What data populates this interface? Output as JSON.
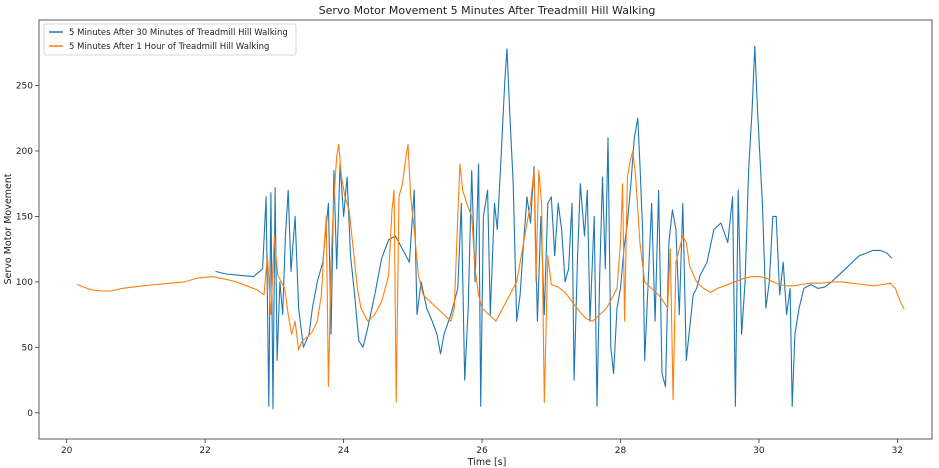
{
  "chart_data": {
    "type": "line",
    "title": "Servo Motor Movement 5 Minutes After Treadmill Hill Walking",
    "xlabel": "Time [s]",
    "ylabel": "Servo Motor Movement",
    "xlim": [
      19.6,
      32.5
    ],
    "ylim": [
      -20,
      300
    ],
    "xticks": [
      20,
      22,
      24,
      26,
      28,
      30,
      32
    ],
    "yticks": [
      0,
      50,
      100,
      150,
      200,
      250
    ],
    "grid": false,
    "legend": "upper left",
    "series": [
      {
        "name": "5 Minutes After 30 Minutes of Treadmill Hill Walking",
        "color": "#1f77b4",
        "points": [
          [
            22.15,
            108
          ],
          [
            22.3,
            106
          ],
          [
            22.5,
            105
          ],
          [
            22.7,
            104
          ],
          [
            22.83,
            110
          ],
          [
            22.88,
            165
          ],
          [
            22.92,
            5
          ],
          [
            22.95,
            168
          ],
          [
            22.98,
            3
          ],
          [
            23.01,
            172
          ],
          [
            23.04,
            40
          ],
          [
            23.08,
            100
          ],
          [
            23.12,
            75
          ],
          [
            23.16,
            135
          ],
          [
            23.2,
            170
          ],
          [
            23.24,
            108
          ],
          [
            23.3,
            150
          ],
          [
            23.35,
            80
          ],
          [
            23.42,
            50
          ],
          [
            23.5,
            60
          ],
          [
            23.55,
            80
          ],
          [
            23.62,
            100
          ],
          [
            23.7,
            115
          ],
          [
            23.78,
            160
          ],
          [
            23.82,
            60
          ],
          [
            23.86,
            185
          ],
          [
            23.9,
            110
          ],
          [
            23.95,
            190
          ],
          [
            24.0,
            150
          ],
          [
            24.05,
            180
          ],
          [
            24.1,
            120
          ],
          [
            24.15,
            95
          ],
          [
            24.22,
            55
          ],
          [
            24.28,
            50
          ],
          [
            24.35,
            65
          ],
          [
            24.45,
            90
          ],
          [
            24.55,
            118
          ],
          [
            24.65,
            132
          ],
          [
            24.75,
            135
          ],
          [
            24.85,
            125
          ],
          [
            24.95,
            115
          ],
          [
            25.02,
            170
          ],
          [
            25.06,
            75
          ],
          [
            25.12,
            100
          ],
          [
            25.2,
            80
          ],
          [
            25.28,
            70
          ],
          [
            25.35,
            60
          ],
          [
            25.4,
            45
          ],
          [
            25.45,
            60
          ],
          [
            25.55,
            75
          ],
          [
            25.65,
            95
          ],
          [
            25.7,
            160
          ],
          [
            25.75,
            25
          ],
          [
            25.8,
            80
          ],
          [
            25.85,
            185
          ],
          [
            25.9,
            100
          ],
          [
            25.95,
            190
          ],
          [
            25.98,
            5
          ],
          [
            26.02,
            150
          ],
          [
            26.08,
            170
          ],
          [
            26.12,
            75
          ],
          [
            26.18,
            160
          ],
          [
            26.22,
            140
          ],
          [
            26.28,
            200
          ],
          [
            26.33,
            255
          ],
          [
            26.36,
            278
          ],
          [
            26.4,
            230
          ],
          [
            26.45,
            175
          ],
          [
            26.5,
            70
          ],
          [
            26.55,
            90
          ],
          [
            26.6,
            130
          ],
          [
            26.65,
            165
          ],
          [
            26.7,
            145
          ],
          [
            26.75,
            188
          ],
          [
            26.8,
            70
          ],
          [
            26.85,
            150
          ],
          [
            26.9,
            75
          ],
          [
            26.95,
            160
          ],
          [
            27.0,
            165
          ],
          [
            27.05,
            120
          ],
          [
            27.1,
            160
          ],
          [
            27.15,
            140
          ],
          [
            27.2,
            100
          ],
          [
            27.25,
            110
          ],
          [
            27.3,
            160
          ],
          [
            27.33,
            25
          ],
          [
            27.38,
            120
          ],
          [
            27.42,
            175
          ],
          [
            27.48,
            135
          ],
          [
            27.52,
            170
          ],
          [
            27.56,
            70
          ],
          [
            27.62,
            150
          ],
          [
            27.66,
            5
          ],
          [
            27.7,
            105
          ],
          [
            27.74,
            180
          ],
          [
            27.78,
            110
          ],
          [
            27.82,
            210
          ],
          [
            27.86,
            50
          ],
          [
            27.9,
            30
          ],
          [
            27.95,
            80
          ],
          [
            28.0,
            95
          ],
          [
            28.05,
            125
          ],
          [
            28.1,
            145
          ],
          [
            28.15,
            175
          ],
          [
            28.2,
            210
          ],
          [
            28.25,
            225
          ],
          [
            28.28,
            190
          ],
          [
            28.32,
            140
          ],
          [
            28.35,
            40
          ],
          [
            28.4,
            100
          ],
          [
            28.45,
            160
          ],
          [
            28.5,
            70
          ],
          [
            28.55,
            170
          ],
          [
            28.6,
            30
          ],
          [
            28.65,
            20
          ],
          [
            28.7,
            130
          ],
          [
            28.75,
            155
          ],
          [
            28.8,
            140
          ],
          [
            28.85,
            75
          ],
          [
            28.9,
            160
          ],
          [
            28.95,
            40
          ],
          [
            29.0,
            65
          ],
          [
            29.05,
            90
          ],
          [
            29.1,
            95
          ],
          [
            29.15,
            105
          ],
          [
            29.25,
            115
          ],
          [
            29.35,
            140
          ],
          [
            29.45,
            145
          ],
          [
            29.55,
            130
          ],
          [
            29.62,
            165
          ],
          [
            29.66,
            5
          ],
          [
            29.7,
            170
          ],
          [
            29.75,
            60
          ],
          [
            29.8,
            100
          ],
          [
            29.85,
            185
          ],
          [
            29.9,
            230
          ],
          [
            29.94,
            280
          ],
          [
            29.98,
            230
          ],
          [
            30.02,
            190
          ],
          [
            30.05,
            160
          ],
          [
            30.1,
            80
          ],
          [
            30.15,
            100
          ],
          [
            30.2,
            150
          ],
          [
            30.25,
            150
          ],
          [
            30.3,
            90
          ],
          [
            30.35,
            115
          ],
          [
            30.4,
            75
          ],
          [
            30.45,
            95
          ],
          [
            30.48,
            5
          ],
          [
            30.52,
            60
          ],
          [
            30.58,
            80
          ],
          [
            30.65,
            95
          ],
          [
            30.75,
            98
          ],
          [
            30.85,
            95
          ],
          [
            30.95,
            96
          ],
          [
            31.05,
            100
          ],
          [
            31.15,
            105
          ],
          [
            31.25,
            110
          ],
          [
            31.35,
            115
          ],
          [
            31.45,
            120
          ],
          [
            31.55,
            122
          ],
          [
            31.65,
            124
          ],
          [
            31.75,
            124
          ],
          [
            31.85,
            122
          ],
          [
            31.92,
            118
          ]
        ]
      },
      {
        "name": "5 Minutes After 1 Hour of Treadmill Hill Walking",
        "color": "#ff7f0e",
        "points": [
          [
            20.15,
            98
          ],
          [
            20.25,
            96
          ],
          [
            20.35,
            94
          ],
          [
            20.5,
            93
          ],
          [
            20.65,
            93
          ],
          [
            20.8,
            95
          ],
          [
            20.95,
            96
          ],
          [
            21.1,
            97
          ],
          [
            21.3,
            98
          ],
          [
            21.5,
            99
          ],
          [
            21.7,
            100
          ],
          [
            21.9,
            103
          ],
          [
            22.1,
            104
          ],
          [
            22.3,
            102
          ],
          [
            22.45,
            100
          ],
          [
            22.6,
            97
          ],
          [
            22.75,
            94
          ],
          [
            22.85,
            90
          ],
          [
            22.9,
            120
          ],
          [
            22.95,
            75
          ],
          [
            23.0,
            135
          ],
          [
            23.05,
            105
          ],
          [
            23.1,
            100
          ],
          [
            23.15,
            95
          ],
          [
            23.2,
            75
          ],
          [
            23.25,
            60
          ],
          [
            23.3,
            70
          ],
          [
            23.35,
            48
          ],
          [
            23.4,
            55
          ],
          [
            23.48,
            58
          ],
          [
            23.55,
            62
          ],
          [
            23.62,
            70
          ],
          [
            23.68,
            90
          ],
          [
            23.72,
            128
          ],
          [
            23.75,
            150
          ],
          [
            23.78,
            20
          ],
          [
            23.82,
            115
          ],
          [
            23.85,
            155
          ],
          [
            23.9,
            196
          ],
          [
            23.93,
            205
          ],
          [
            23.97,
            180
          ],
          [
            24.02,
            165
          ],
          [
            24.08,
            155
          ],
          [
            24.15,
            120
          ],
          [
            24.2,
            95
          ],
          [
            24.25,
            80
          ],
          [
            24.35,
            70
          ],
          [
            24.45,
            75
          ],
          [
            24.55,
            85
          ],
          [
            24.65,
            105
          ],
          [
            24.7,
            155
          ],
          [
            24.73,
            170
          ],
          [
            24.76,
            8
          ],
          [
            24.8,
            165
          ],
          [
            24.85,
            175
          ],
          [
            24.9,
            195
          ],
          [
            24.93,
            205
          ],
          [
            24.97,
            165
          ],
          [
            25.02,
            140
          ],
          [
            25.08,
            105
          ],
          [
            25.15,
            90
          ],
          [
            25.25,
            85
          ],
          [
            25.35,
            80
          ],
          [
            25.45,
            75
          ],
          [
            25.55,
            70
          ],
          [
            25.6,
            80
          ],
          [
            25.65,
            150
          ],
          [
            25.68,
            190
          ],
          [
            25.72,
            170
          ],
          [
            25.78,
            160
          ],
          [
            25.85,
            150
          ],
          [
            25.9,
            110
          ],
          [
            25.95,
            90
          ],
          [
            26.0,
            80
          ],
          [
            26.1,
            75
          ],
          [
            26.2,
            70
          ],
          [
            26.3,
            80
          ],
          [
            26.4,
            90
          ],
          [
            26.5,
            100
          ],
          [
            26.6,
            130
          ],
          [
            26.7,
            160
          ],
          [
            26.75,
            185
          ],
          [
            26.78,
            100
          ],
          [
            26.82,
            185
          ],
          [
            26.86,
            160
          ],
          [
            26.9,
            8
          ],
          [
            26.95,
            120
          ],
          [
            27.0,
            98
          ],
          [
            27.1,
            96
          ],
          [
            27.2,
            92
          ],
          [
            27.3,
            85
          ],
          [
            27.4,
            78
          ],
          [
            27.5,
            72
          ],
          [
            27.6,
            70
          ],
          [
            27.7,
            75
          ],
          [
            27.8,
            80
          ],
          [
            27.9,
            90
          ],
          [
            27.95,
            95
          ],
          [
            28.0,
            130
          ],
          [
            28.03,
            175
          ],
          [
            28.06,
            70
          ],
          [
            28.1,
            180
          ],
          [
            28.15,
            195
          ],
          [
            28.18,
            200
          ],
          [
            28.22,
            180
          ],
          [
            28.28,
            130
          ],
          [
            28.35,
            100
          ],
          [
            28.45,
            95
          ],
          [
            28.55,
            90
          ],
          [
            28.62,
            85
          ],
          [
            28.68,
            80
          ],
          [
            28.72,
            125
          ],
          [
            28.76,
            10
          ],
          [
            28.8,
            115
          ],
          [
            28.85,
            125
          ],
          [
            28.9,
            135
          ],
          [
            28.95,
            130
          ],
          [
            29.0,
            112
          ],
          [
            29.1,
            100
          ],
          [
            29.2,
            95
          ],
          [
            29.3,
            92
          ],
          [
            29.4,
            95
          ],
          [
            29.5,
            97
          ],
          [
            29.6,
            99
          ],
          [
            29.7,
            101
          ],
          [
            29.8,
            103
          ],
          [
            29.9,
            104
          ],
          [
            30.0,
            104
          ],
          [
            30.1,
            103
          ],
          [
            30.2,
            100
          ],
          [
            30.3,
            98
          ],
          [
            30.4,
            97
          ],
          [
            30.5,
            97
          ],
          [
            30.6,
            98
          ],
          [
            30.75,
            99
          ],
          [
            30.9,
            99
          ],
          [
            31.05,
            100
          ],
          [
            31.2,
            100
          ],
          [
            31.35,
            99
          ],
          [
            31.5,
            98
          ],
          [
            31.65,
            97
          ],
          [
            31.8,
            98
          ],
          [
            31.9,
            99
          ],
          [
            31.97,
            95
          ],
          [
            32.02,
            88
          ],
          [
            32.06,
            83
          ],
          [
            32.1,
            79
          ]
        ]
      }
    ]
  }
}
